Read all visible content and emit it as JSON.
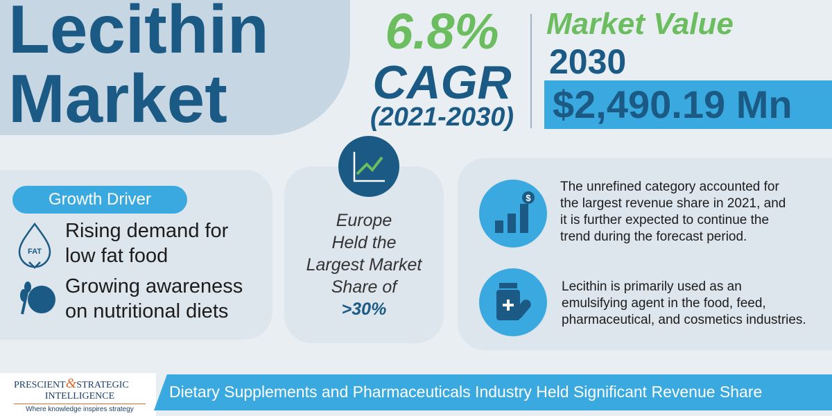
{
  "title": {
    "lines": [
      "Lecithin",
      "Market"
    ]
  },
  "cagr": {
    "value": "6.8%",
    "label": "CAGR",
    "period": "(2021-2030)"
  },
  "market_value": {
    "heading": "Market Value",
    "year": "2030",
    "amount": "$2,490.19 Mn"
  },
  "growth_driver": {
    "title": "Growth Driver",
    "icon_label": "FAT",
    "items": [
      {
        "lines": [
          "Rising demand for",
          "low fat food"
        ]
      },
      {
        "lines": [
          "Growing awareness",
          "on nutritional diets"
        ]
      }
    ]
  },
  "region": {
    "lines": [
      "Europe",
      "Held the",
      "Largest Market",
      "Share of"
    ],
    "share": ">30%"
  },
  "facts": {
    "icon_label": "$",
    "items": [
      {
        "lines": [
          "The unrefined category accounted for",
          "the largest revenue share in 2021, and",
          "it is further expected to continue the",
          "trend during the forecast period."
        ]
      },
      {
        "lines": [
          "Lecithin is primarily used as an",
          "emulsifying agent in the food, feed,",
          "pharmaceutical, and cosmetics industries."
        ]
      }
    ]
  },
  "footer": {
    "logo": {
      "left": "PRESCIENT",
      "amp": "&",
      "right": "STRATEGIC",
      "bottom": "INTELLIGENCE",
      "tagline": "Where knowledge inspires strategy"
    },
    "banner": "Dietary Supplements and Pharmaceuticals Industry Held Significant Revenue Share"
  }
}
